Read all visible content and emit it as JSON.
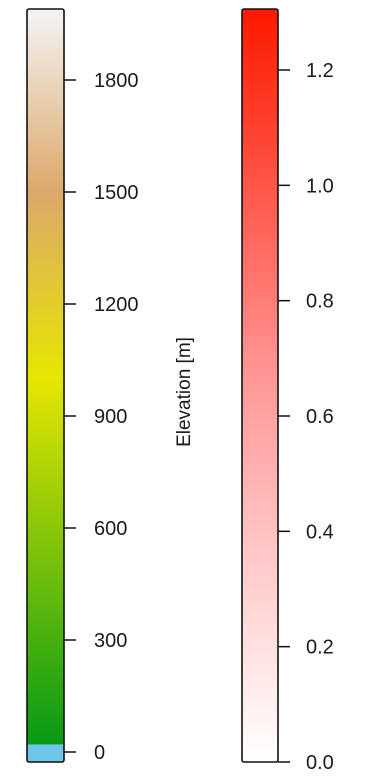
{
  "chart_data": [
    {
      "type": "colorbar",
      "label": "Elevation [m]",
      "range": [
        -30,
        2050
      ],
      "ticks": [
        0,
        300,
        600,
        900,
        1200,
        1500,
        1800
      ],
      "tick_labels": [
        "0",
        "300",
        "600",
        "900",
        "1200",
        "1500",
        "1800"
      ],
      "colormap": [
        {
          "value": -30,
          "color": "#6ec6e6"
        },
        {
          "value": 20,
          "color": "#6ec6e6"
        },
        {
          "value": 21,
          "color": "#079a15"
        },
        {
          "value": 1000,
          "color": "#e6e600"
        },
        {
          "value": 1500,
          "color": "#dca86a"
        },
        {
          "value": 2050,
          "color": "#f4f4f4"
        }
      ]
    },
    {
      "type": "colorbar",
      "label": "",
      "range": [
        0,
        1.3
      ],
      "ticks": [
        0,
        0.2,
        0.4,
        0.6,
        0.8,
        1.0,
        1.2
      ],
      "tick_labels": [
        "0.0",
        "0.2",
        "0.4",
        "0.6",
        "0.8",
        "1.0",
        "1.2"
      ],
      "colormap": [
        {
          "value": 0,
          "color": "#ffffff"
        },
        {
          "value": 0.65,
          "color": "#ff9a9a"
        },
        {
          "value": 1.3,
          "color": "#ff1a00"
        }
      ]
    }
  ]
}
